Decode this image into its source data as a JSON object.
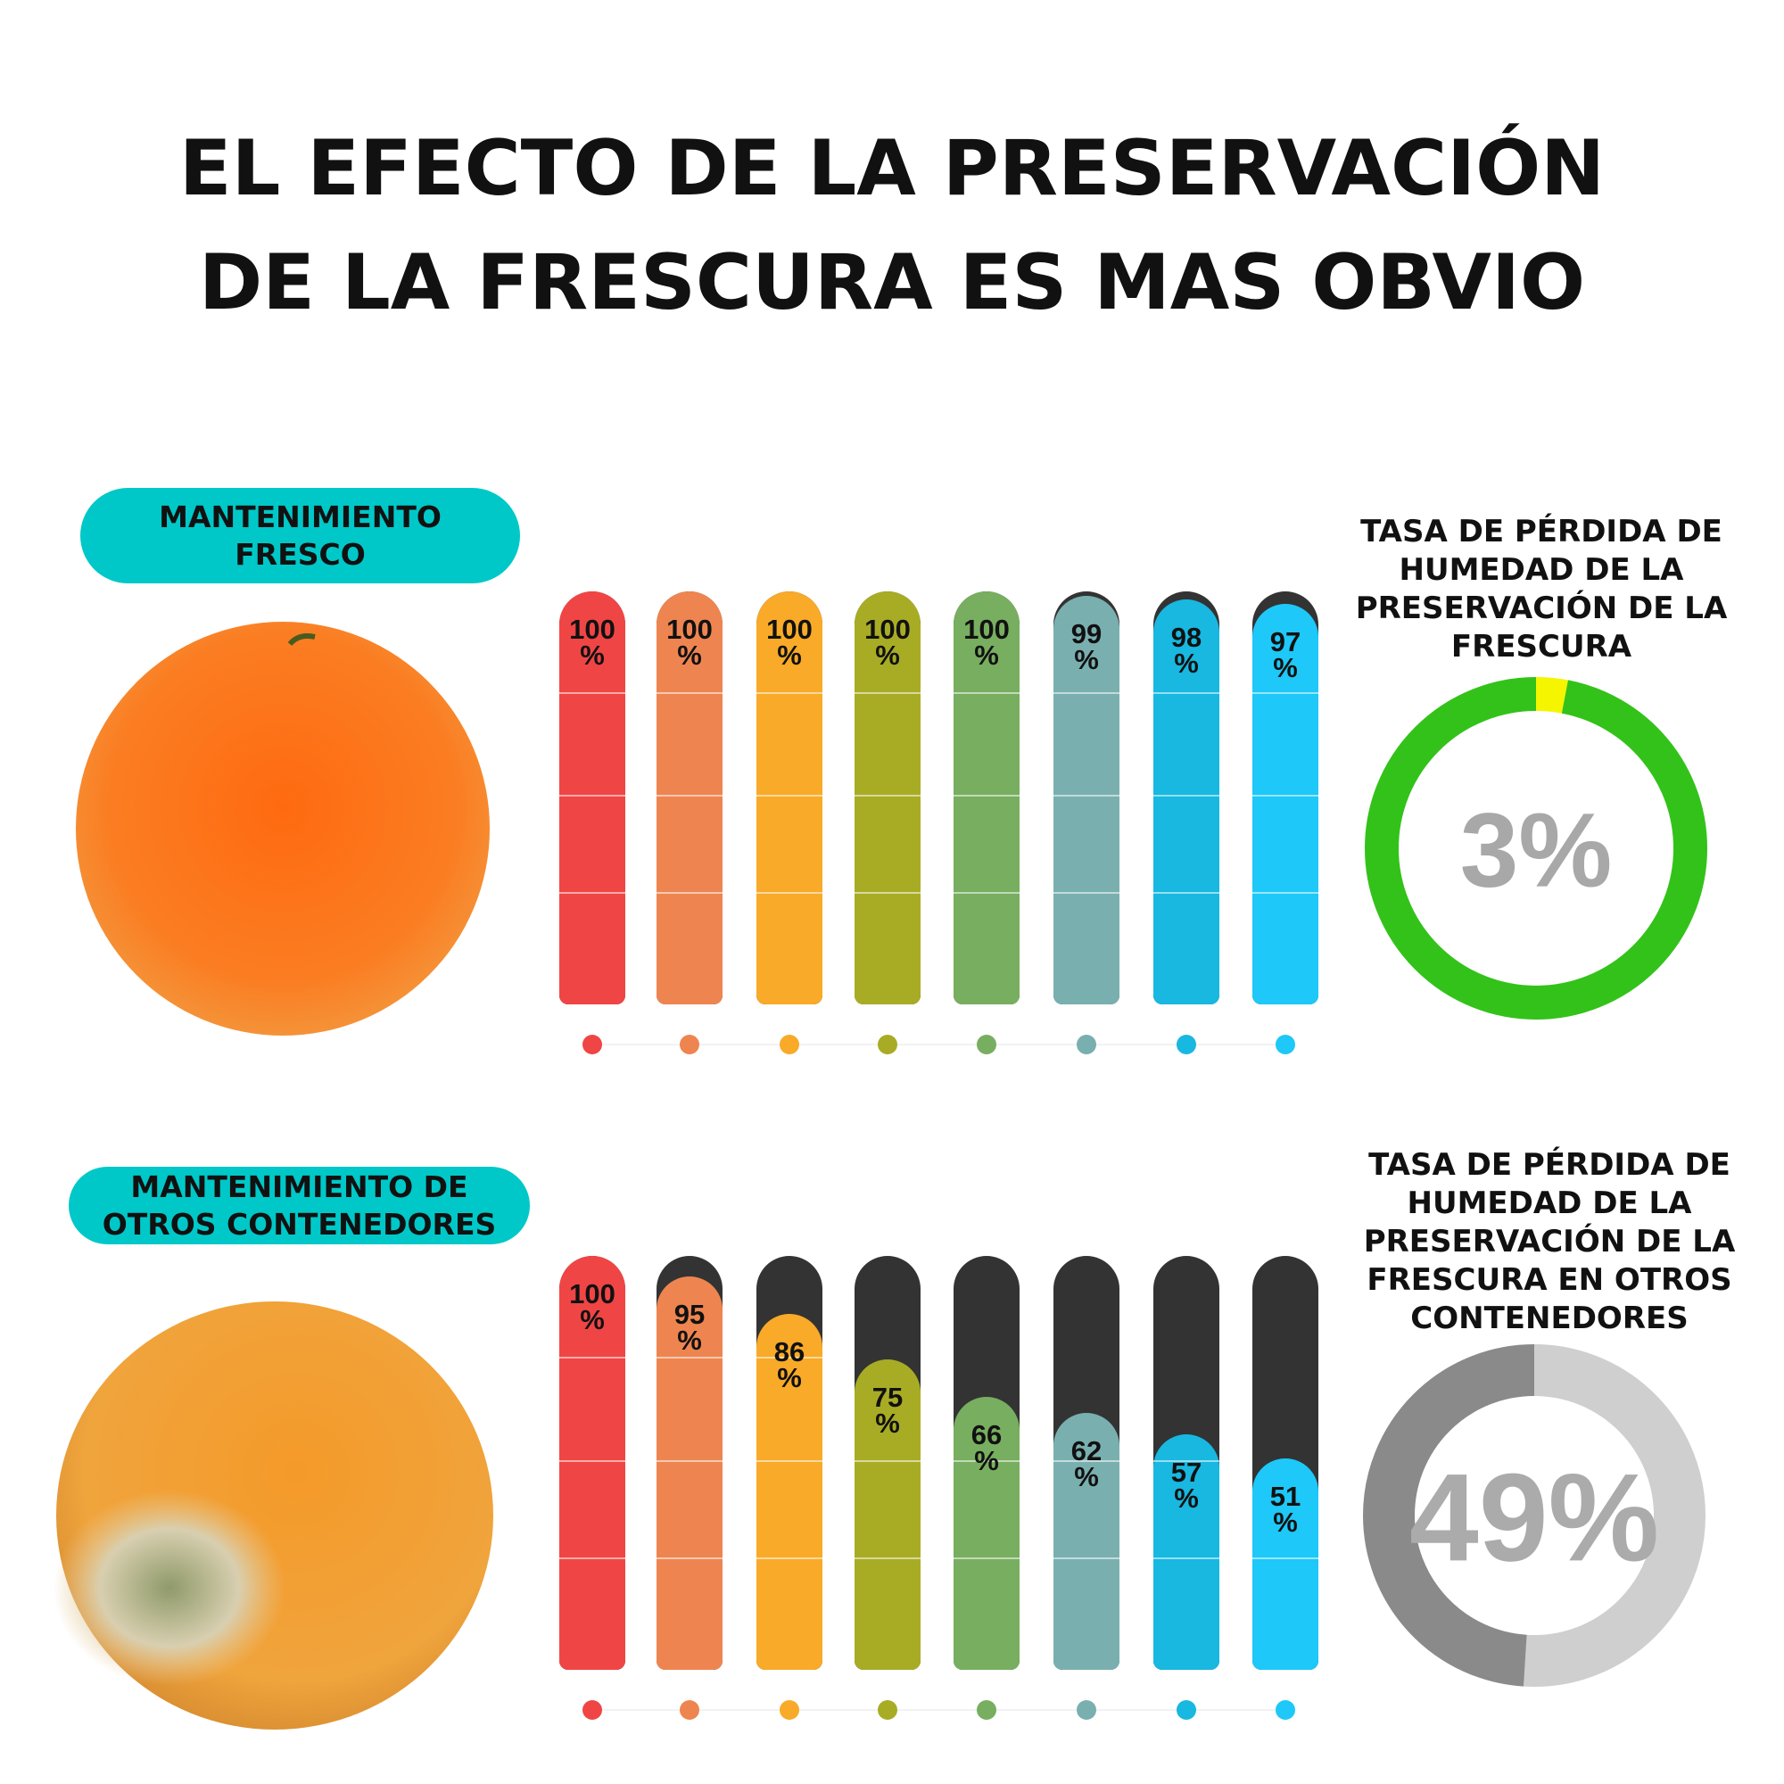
{
  "title": "EL EFECTO DE LA PRESERVACIÓN DE LA FRESCURA ES MAS OBVIO",
  "chart_data": [
    {
      "type": "bar",
      "title": "MANTENIMIENTO FRESCO",
      "values": [
        100,
        100,
        100,
        100,
        100,
        99,
        98,
        97
      ],
      "value_labels": [
        "100\n%",
        "100\n%",
        "100\n%",
        "100\n%",
        "100\n%",
        "99\n%",
        "98\n%",
        "97\n%"
      ],
      "colors": [
        "#f04545",
        "#ee8550",
        "#f8aa28",
        "#a8ac25",
        "#78ae60",
        "#7aafb0",
        "#18b8e0",
        "#1ec8f8"
      ],
      "track_color": "#333333",
      "ylim": [
        0,
        100
      ]
    },
    {
      "type": "pie",
      "title": "TASA DE PÉRDIDA DE HUMEDAD DE LA PRESERVACIÓN DE LA FRESCURA",
      "values": [
        3,
        97
      ],
      "value_labels": [
        "3%",
        null
      ],
      "colors": [
        "#f5f500",
        "#33c21a"
      ]
    },
    {
      "type": "bar",
      "title": "MANTENIMIENTO DE OTROS CONTENEDORES",
      "values": [
        100,
        95,
        86,
        75,
        66,
        62,
        57,
        51
      ],
      "value_labels": [
        "100\n%",
        "95\n%",
        "86\n%",
        "75\n%",
        "66\n%",
        "62\n%",
        "57\n%",
        "51\n%"
      ],
      "colors": [
        "#f04545",
        "#ee8550",
        "#f8aa28",
        "#a8ac25",
        "#78ae60",
        "#7aafb0",
        "#18b8e0",
        "#1ec8f8"
      ],
      "track_color": "#333333",
      "ylim": [
        0,
        100
      ]
    },
    {
      "type": "pie",
      "title": "TASA DE PÉRDIDA DE HUMEDAD DE LA PRESERVACIÓN DE LA FRESCURA EN OTROS CONTENEDORES",
      "values": [
        51,
        49
      ],
      "value_labels": [
        null,
        "49%"
      ],
      "colors": [
        "#cfcfcf",
        "#8a8a8a"
      ]
    }
  ]
}
